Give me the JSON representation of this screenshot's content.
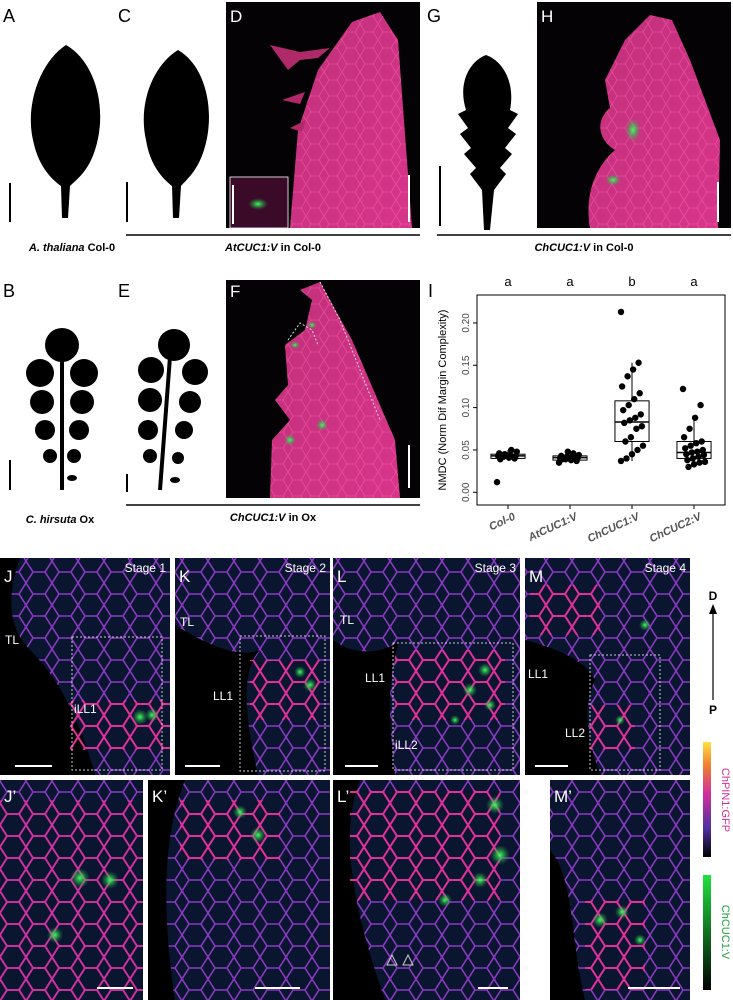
{
  "panel_labels": [
    "A",
    "B",
    "C",
    "D",
    "E",
    "F",
    "G",
    "H",
    "I",
    "J",
    "K",
    "L",
    "M",
    "J’",
    "K’",
    "L’",
    "M’"
  ],
  "captions": {
    "a_thaliana": {
      "italic": "A. thaliana",
      "plain": " Col-0"
    },
    "c_hirsuta": {
      "italic": "C. hirsuta",
      "plain": " Ox"
    },
    "at_cuc1_col0": {
      "italic": "AtCUC1:V",
      "plain": " in Col-0"
    },
    "ch_cuc1_col0": {
      "italic": "ChCUC1:V",
      "plain": " in Col-0"
    },
    "ch_cuc1_ox": {
      "italic": "ChCUC1:V",
      "plain": " in Ox"
    }
  },
  "stages": [
    "Stage 1",
    "Stage 2",
    "Stage 3",
    "Stage 4"
  ],
  "leaf_labels": [
    "TL",
    "iLL1",
    "TL",
    "LL1",
    "TL",
    "LL1",
    "iLL2",
    "LL1",
    "LL2"
  ],
  "axis": {
    "distal": "D",
    "proximal": "P"
  },
  "colorbars": [
    "ChPIN1:GFP",
    "ChCUC1:V"
  ],
  "chart_data": {
    "type": "box",
    "y_label": "NMDC (Norm Dif Margin Complexity)",
    "categories": [
      "Col-0",
      "AtCUC1:V",
      "ChCUC1:V",
      "ChCUC2:V"
    ],
    "significance": [
      "a",
      "a",
      "b",
      "a"
    ],
    "boxes": [
      {
        "whislo": 0.037,
        "q1": 0.04,
        "med": 0.043,
        "q3": 0.045,
        "whishi": 0.05
      },
      {
        "whislo": 0.035,
        "q1": 0.038,
        "med": 0.041,
        "q3": 0.043,
        "whishi": 0.048
      },
      {
        "whislo": 0.037,
        "q1": 0.06,
        "med": 0.083,
        "q3": 0.108,
        "whishi": 0.153
      },
      {
        "whislo": 0.03,
        "q1": 0.04,
        "med": 0.047,
        "q3": 0.06,
        "whishi": 0.088
      }
    ],
    "points": [
      [
        0.012,
        0.04,
        0.041,
        0.042,
        0.043,
        0.043,
        0.044,
        0.045,
        0.046,
        0.048,
        0.05,
        0.044,
        0.039
      ],
      [
        0.035,
        0.037,
        0.038,
        0.039,
        0.04,
        0.041,
        0.041,
        0.042,
        0.043,
        0.044,
        0.046,
        0.048,
        0.039
      ],
      [
        0.213,
        0.153,
        0.145,
        0.137,
        0.125,
        0.117,
        0.11,
        0.103,
        0.097,
        0.092,
        0.088,
        0.085,
        0.082,
        0.078,
        0.075,
        0.065,
        0.06,
        0.055,
        0.05,
        0.045,
        0.04,
        0.037
      ],
      [
        0.122,
        0.103,
        0.088,
        0.075,
        0.065,
        0.06,
        0.058,
        0.055,
        0.052,
        0.05,
        0.048,
        0.047,
        0.045,
        0.044,
        0.042,
        0.04,
        0.038,
        0.036,
        0.035,
        0.033,
        0.03
      ]
    ],
    "ylim": [
      -0.015,
      0.233
    ],
    "yticks": [
      {
        "value": 0,
        "label": "0.00"
      },
      {
        "value": 0.05,
        "label": "0.05"
      },
      {
        "value": 0.1,
        "label": "0.10"
      },
      {
        "value": 0.15,
        "label": "0.15"
      },
      {
        "value": 0.2,
        "label": "0.20"
      }
    ],
    "color": "#000000",
    "grid": false
  }
}
